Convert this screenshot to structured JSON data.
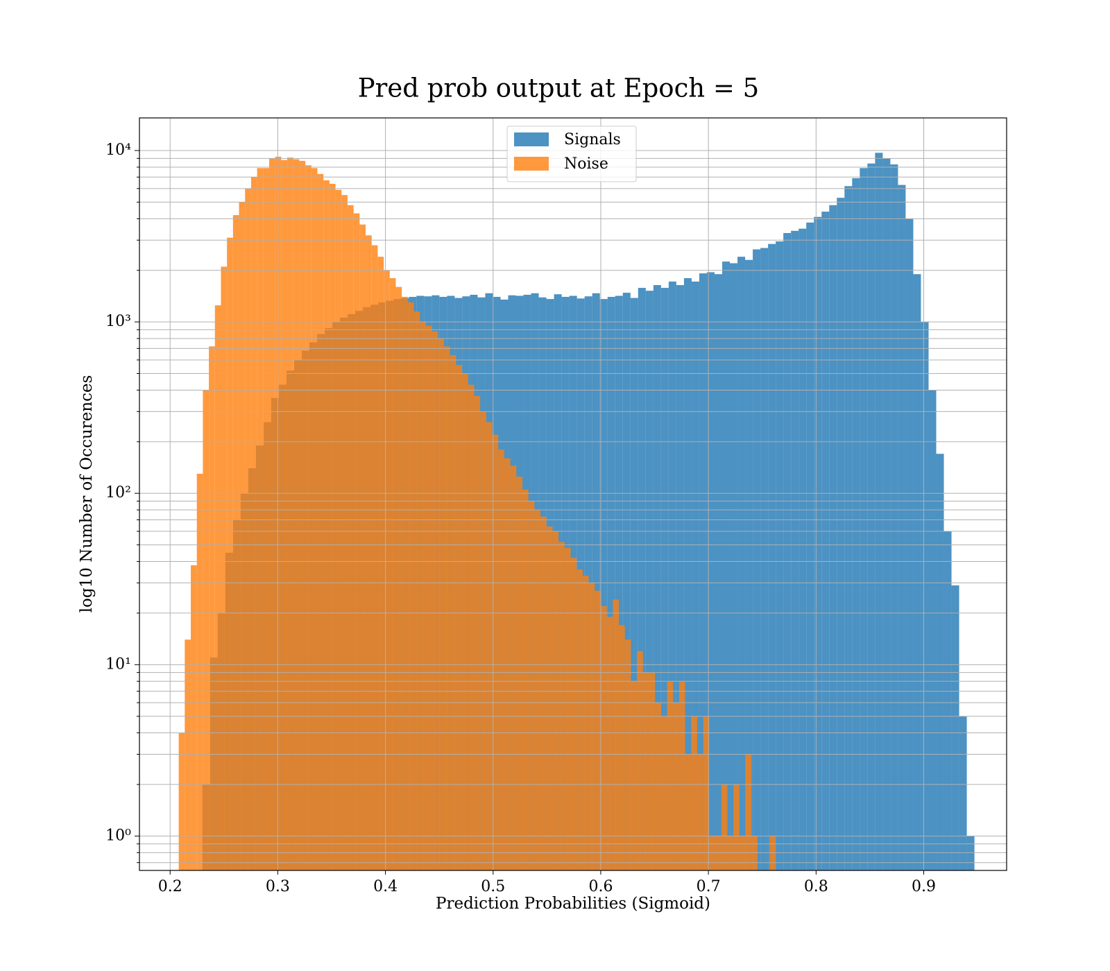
{
  "chart_data": {
    "type": "histogram",
    "title": "Pred prob output at Epoch = 5",
    "xlabel": "Prediction Probabilities (Sigmoid)",
    "ylabel": "log10 Number of Occurences",
    "yscale": "log",
    "grid": true,
    "legend": "upper center",
    "alpha": 0.8,
    "xlim": [
      0.1715,
      0.977
    ],
    "xticks": [
      0.2,
      0.3,
      0.4,
      0.5,
      0.6,
      0.7,
      0.8,
      0.9
    ],
    "ylim": [
      0.63,
      15500
    ],
    "yticks": [
      {
        "value": 1,
        "label": "10⁰"
      },
      {
        "value": 10,
        "label": "10¹"
      },
      {
        "value": 100,
        "label": "10²"
      },
      {
        "value": 1000,
        "label": "10³"
      },
      {
        "value": 10000,
        "label": "10⁴"
      }
    ],
    "yticks_minor": [
      0.7,
      0.8,
      0.9,
      2,
      3,
      4,
      5,
      6,
      7,
      8,
      9,
      20,
      30,
      40,
      50,
      60,
      70,
      80,
      90,
      200,
      300,
      400,
      500,
      600,
      700,
      800,
      900,
      2000,
      3000,
      4000,
      5000,
      6000,
      7000,
      8000,
      9000
    ],
    "series": [
      {
        "name": "Signals",
        "color": "#1f77b4",
        "bins": [
          0.23,
          0.2371,
          0.2442,
          0.2513,
          0.2584,
          0.2655,
          0.2726,
          0.2797,
          0.2868,
          0.2939,
          0.301,
          0.3081,
          0.3152,
          0.3223,
          0.3294,
          0.3365,
          0.3436,
          0.3507,
          0.3578,
          0.3649,
          0.372,
          0.3791,
          0.3862,
          0.3933,
          0.4004,
          0.4075,
          0.4146,
          0.4217,
          0.4288,
          0.4359,
          0.443,
          0.4501,
          0.4572,
          0.4643,
          0.4714,
          0.4785,
          0.4856,
          0.4927,
          0.4998,
          0.5069,
          0.514,
          0.5211,
          0.5282,
          0.5353,
          0.5424,
          0.5495,
          0.5566,
          0.5637,
          0.5708,
          0.5779,
          0.585,
          0.5921,
          0.5992,
          0.6063,
          0.6134,
          0.6205,
          0.6276,
          0.6347,
          0.6418,
          0.6489,
          0.656,
          0.6631,
          0.6702,
          0.6773,
          0.6844,
          0.6915,
          0.6986,
          0.7057,
          0.7128,
          0.7199,
          0.727,
          0.7341,
          0.7412,
          0.7483,
          0.7554,
          0.7625,
          0.7696,
          0.7767,
          0.7838,
          0.7909,
          0.798,
          0.8051,
          0.8122,
          0.8193,
          0.8264,
          0.8335,
          0.8406,
          0.8477,
          0.8548,
          0.8619,
          0.869,
          0.8761,
          0.8832,
          0.8903,
          0.8974,
          0.9045,
          0.9116,
          0.9187,
          0.9258,
          0.9329,
          0.94,
          0.9471
        ],
        "values": [
          2,
          11,
          20,
          45,
          70,
          100,
          140,
          190,
          260,
          360,
          430,
          520,
          600,
          680,
          760,
          850,
          920,
          1000,
          1060,
          1110,
          1160,
          1220,
          1260,
          1300,
          1330,
          1360,
          1380,
          1400,
          1420,
          1410,
          1430,
          1400,
          1420,
          1380,
          1410,
          1440,
          1390,
          1470,
          1400,
          1350,
          1430,
          1420,
          1440,
          1470,
          1390,
          1360,
          1450,
          1400,
          1420,
          1370,
          1410,
          1470,
          1360,
          1400,
          1420,
          1480,
          1380,
          1580,
          1520,
          1640,
          1580,
          1720,
          1640,
          1800,
          1720,
          1920,
          1950,
          1900,
          2250,
          2200,
          2400,
          2300,
          2650,
          2700,
          2850,
          2950,
          3300,
          3400,
          3500,
          3800,
          4100,
          4400,
          4800,
          5300,
          6200,
          6900,
          7900,
          8400,
          9700,
          9000,
          8300,
          6300,
          4000,
          1900,
          1000,
          400,
          170,
          60,
          29,
          5,
          1
        ]
      },
      {
        "name": "Noise",
        "color": "#ff7f0e",
        "bins": [
          0.208,
          0.2136,
          0.2192,
          0.2248,
          0.2304,
          0.236,
          0.2416,
          0.2472,
          0.2528,
          0.2584,
          0.264,
          0.2696,
          0.2752,
          0.2808,
          0.2864,
          0.292,
          0.2976,
          0.3032,
          0.3088,
          0.3144,
          0.32,
          0.3256,
          0.3312,
          0.3368,
          0.3424,
          0.348,
          0.3536,
          0.3592,
          0.3648,
          0.3704,
          0.376,
          0.3816,
          0.3872,
          0.3928,
          0.3984,
          0.404,
          0.4096,
          0.4152,
          0.4208,
          0.4264,
          0.432,
          0.4376,
          0.4432,
          0.4488,
          0.4544,
          0.46,
          0.4656,
          0.4712,
          0.4768,
          0.4824,
          0.488,
          0.4936,
          0.4992,
          0.5048,
          0.5104,
          0.516,
          0.5216,
          0.5272,
          0.5328,
          0.5384,
          0.544,
          0.5496,
          0.5552,
          0.5608,
          0.5664,
          0.572,
          0.5776,
          0.5832,
          0.5888,
          0.5944,
          0.6,
          0.6056,
          0.6112,
          0.6168,
          0.6224,
          0.628,
          0.6336,
          0.6392,
          0.6448,
          0.6504,
          0.656,
          0.6616,
          0.6672,
          0.6728,
          0.6784,
          0.684,
          0.6896,
          0.6952,
          0.7008,
          0.7064,
          0.712,
          0.7176,
          0.7232,
          0.7288,
          0.7344,
          0.74,
          0.7456,
          0.7512,
          0.7568,
          0.7624
        ],
        "values": [
          4,
          14,
          38,
          130,
          400,
          720,
          1250,
          2100,
          3100,
          4200,
          5000,
          6000,
          7000,
          7900,
          7900,
          9000,
          9200,
          8800,
          9100,
          8900,
          8700,
          8200,
          7900,
          7300,
          6700,
          6400,
          5900,
          5500,
          4800,
          4300,
          3700,
          3200,
          2800,
          2400,
          2000,
          1800,
          1600,
          1400,
          1300,
          1150,
          1000,
          950,
          880,
          800,
          720,
          640,
          560,
          500,
          430,
          370,
          300,
          260,
          220,
          180,
          160,
          145,
          125,
          105,
          90,
          80,
          73,
          64,
          60,
          52,
          48,
          42,
          36,
          33,
          30,
          27,
          22,
          19,
          24,
          17,
          14,
          8,
          12,
          9,
          9,
          6,
          5,
          8,
          6,
          8,
          3,
          5,
          3,
          5,
          1,
          1,
          2,
          1,
          2,
          1,
          3,
          1,
          0,
          0,
          1
        ]
      }
    ]
  }
}
